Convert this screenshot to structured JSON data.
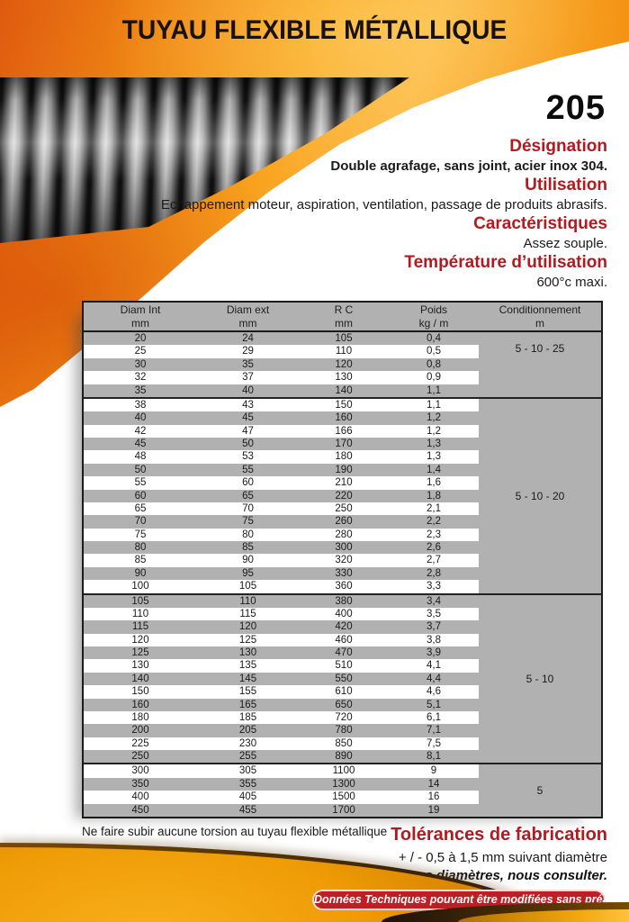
{
  "page": {
    "title": "TUYAU FLEXIBLE MÉTALLIQUE",
    "product_number": "205"
  },
  "sections": [
    {
      "heading": "Désignation",
      "body": "Double agrafage, sans joint, acier inox 304."
    },
    {
      "heading": "Utilisation",
      "body": "Echappement moteur, aspiration, ventilation, passage de produits abrasifs."
    },
    {
      "heading": "Caractéristiques",
      "body": "Assez souple."
    },
    {
      "heading": "Température d’utilisation",
      "body": "600°c maxi."
    }
  ],
  "table": {
    "headers": [
      {
        "label": "Diam Int",
        "unit": "mm"
      },
      {
        "label": "Diam ext",
        "unit": "mm"
      },
      {
        "label": "R C",
        "unit": "mm"
      },
      {
        "label": "Poids",
        "unit": "kg / m"
      },
      {
        "label": "Conditionnement",
        "unit": "m"
      }
    ],
    "groups": [
      {
        "conditionnement": "5 - 10 - 25",
        "rows": [
          [
            "20",
            "24",
            "105",
            "0,4"
          ],
          [
            "25",
            "29",
            "110",
            "0,5"
          ],
          [
            "30",
            "35",
            "120",
            "0,8"
          ],
          [
            "32",
            "37",
            "130",
            "0,9"
          ],
          [
            "35",
            "40",
            "140",
            "1,1"
          ]
        ]
      },
      {
        "conditionnement": "5 - 10 - 20",
        "rows": [
          [
            "38",
            "43",
            "150",
            "1,1"
          ],
          [
            "40",
            "45",
            "160",
            "1,2"
          ],
          [
            "42",
            "47",
            "166",
            "1,2"
          ],
          [
            "45",
            "50",
            "170",
            "1,3"
          ],
          [
            "48",
            "53",
            "180",
            "1,3"
          ],
          [
            "50",
            "55",
            "190",
            "1,4"
          ],
          [
            "55",
            "60",
            "210",
            "1,6"
          ],
          [
            "60",
            "65",
            "220",
            "1,8"
          ],
          [
            "65",
            "70",
            "250",
            "2,1"
          ],
          [
            "70",
            "75",
            "260",
            "2,2"
          ],
          [
            "75",
            "80",
            "280",
            "2,3"
          ],
          [
            "80",
            "85",
            "300",
            "2,6"
          ],
          [
            "85",
            "90",
            "320",
            "2,7"
          ],
          [
            "90",
            "95",
            "330",
            "2,8"
          ],
          [
            "100",
            "105",
            "360",
            "3,3"
          ]
        ]
      },
      {
        "conditionnement": "5 - 10",
        "rows": [
          [
            "105",
            "110",
            "380",
            "3,4"
          ],
          [
            "110",
            "115",
            "400",
            "3,5"
          ],
          [
            "115",
            "120",
            "420",
            "3,7"
          ],
          [
            "120",
            "125",
            "460",
            "3,8"
          ],
          [
            "125",
            "130",
            "470",
            "3,9"
          ],
          [
            "130",
            "135",
            "510",
            "4,1"
          ],
          [
            "140",
            "145",
            "550",
            "4,4"
          ],
          [
            "150",
            "155",
            "610",
            "4,6"
          ],
          [
            "160",
            "165",
            "650",
            "5,1"
          ],
          [
            "180",
            "185",
            "720",
            "6,1"
          ],
          [
            "200",
            "205",
            "780",
            "7,1"
          ],
          [
            "225",
            "230",
            "850",
            "7,5"
          ],
          [
            "250",
            "255",
            "890",
            "8,1"
          ]
        ]
      },
      {
        "conditionnement": "5",
        "rows": [
          [
            "300",
            "305",
            "1100",
            "9"
          ],
          [
            "350",
            "355",
            "1300",
            "14"
          ],
          [
            "400",
            "405",
            "1500",
            "16"
          ],
          [
            "450",
            "455",
            "1700",
            "19"
          ]
        ]
      }
    ]
  },
  "footer": {
    "note": "Ne faire subir aucune torsion au tuyau flexible métallique",
    "tolerances_heading": "Tolérances de fabrication",
    "tolerances_value": "+ / - 0,5 à 1,5 mm suivant diamètre",
    "consult": "Autres diamètres, nous consulter.",
    "disclaimer": "Données Techniques pouvant être modifiées sans préavis."
  },
  "colors": {
    "heading_red": "#b21a20",
    "pill_red": "#be1e24",
    "table_gray": "#b1b1b1",
    "flame_orange": "#f9a41f",
    "gold_swoosh": "#ef9c06"
  }
}
